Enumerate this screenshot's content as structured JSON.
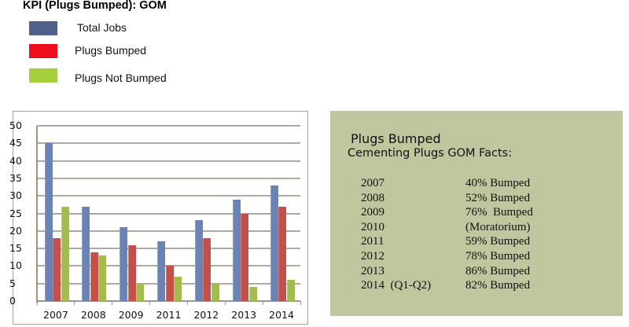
{
  "title": "KPI (Plugs Bumped): GOM",
  "legend": [
    {
      "label": "Total Jobs",
      "color": "#4e6189"
    },
    {
      "label": "Plugs Bumped",
      "color": "#ee0d1d"
    },
    {
      "label": "Plugs Not Bumped",
      "color": "#a6cf3c"
    }
  ],
  "facts": {
    "heading": "Plugs Bumped",
    "subheading": "Cementing Plugs GOM Facts:",
    "rows": [
      {
        "year": "2007",
        "value": "40% Bumped"
      },
      {
        "year": "2008",
        "value": "52% Bumped"
      },
      {
        "year": "2009",
        "value": "76%  Bumped"
      },
      {
        "year": "2010",
        "value": "(Moratorium)"
      },
      {
        "year": "2011",
        "value": "59% Bumped"
      },
      {
        "year": "2012",
        "value": "78% Bumped"
      },
      {
        "year": "2013",
        "value": "86% Bumped"
      },
      {
        "year": "2014  (Q1-Q2)",
        "value": "82% Bumped"
      }
    ],
    "background": "#c2c69f"
  },
  "chart_data": {
    "type": "bar",
    "title": "KPI (Plugs Bumped): GOM",
    "xlabel": "",
    "ylabel": "",
    "categories": [
      "2007",
      "2008",
      "2009",
      "2011",
      "2012",
      "2013",
      "2014"
    ],
    "series": [
      {
        "name": "Total Jobs",
        "color": "#6a82b4",
        "values": [
          45,
          27,
          21,
          17,
          23,
          29,
          33
        ]
      },
      {
        "name": "Plugs Bumped",
        "color": "#c3504b",
        "values": [
          18,
          14,
          16,
          10,
          18,
          25,
          27
        ]
      },
      {
        "name": "Plugs Not Bumped",
        "color": "#a2bd4c",
        "values": [
          27,
          13,
          5,
          7,
          5,
          4,
          6
        ]
      }
    ],
    "ylim": [
      0,
      50
    ],
    "yticks": [
      0,
      5,
      10,
      15,
      20,
      25,
      30,
      35,
      40,
      45,
      50
    ],
    "grid": true,
    "legend_position": "top-left, outside chart"
  }
}
